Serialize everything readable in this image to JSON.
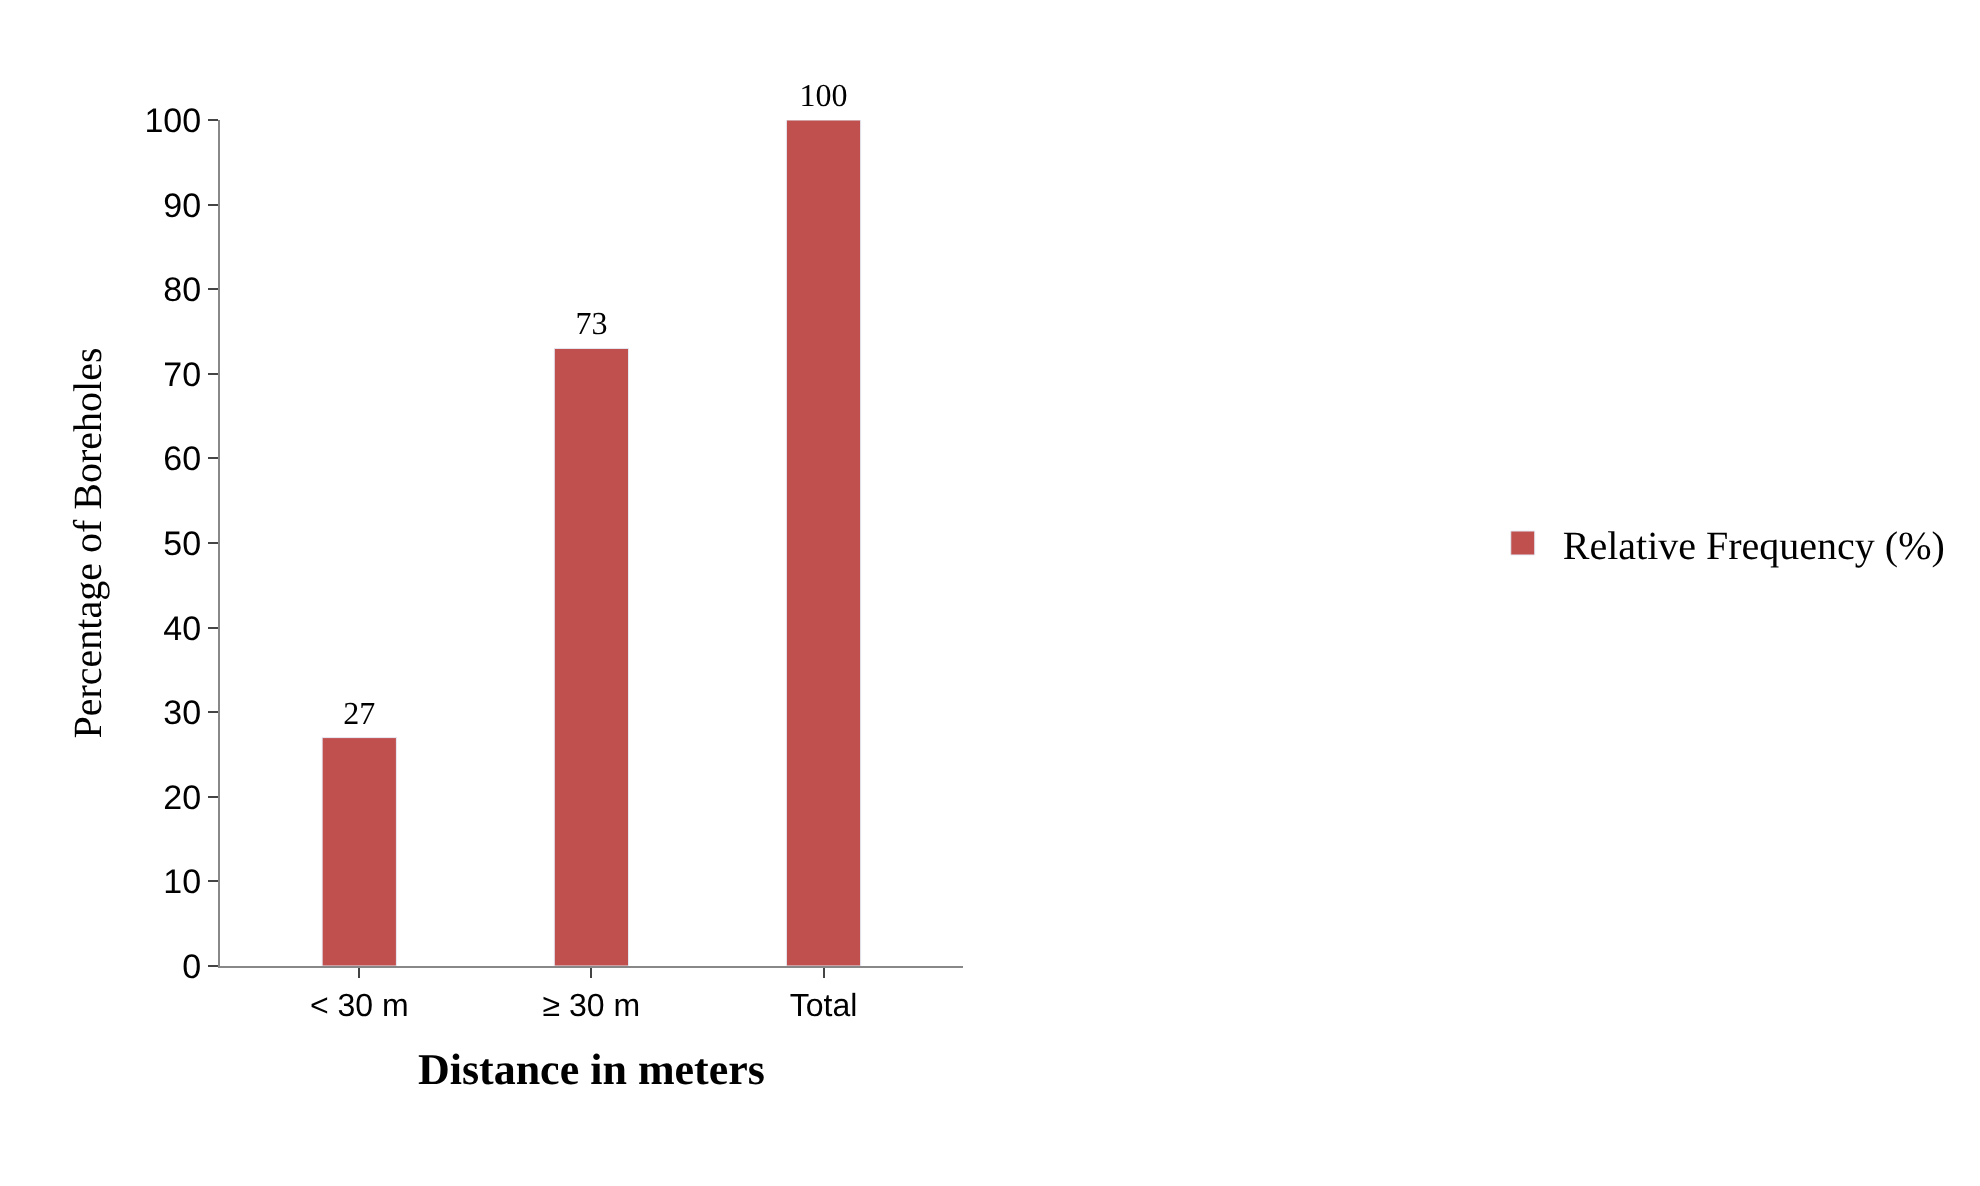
{
  "chart_data": {
    "type": "bar",
    "xlabel": "Distance in meters",
    "ylabel": "Percentage of Boreholes",
    "categories": [
      "< 30 m",
      "≥ 30 m",
      "Total"
    ],
    "series": [
      {
        "name": "Relative Frequency (%)",
        "color": "#c0504d",
        "values": [
          27,
          73,
          100
        ]
      }
    ],
    "ylim": [
      0,
      100
    ],
    "yticks": [
      0,
      10,
      20,
      30,
      40,
      50,
      60,
      70,
      80,
      90,
      100
    ],
    "data_labels": true,
    "legend": "right"
  }
}
